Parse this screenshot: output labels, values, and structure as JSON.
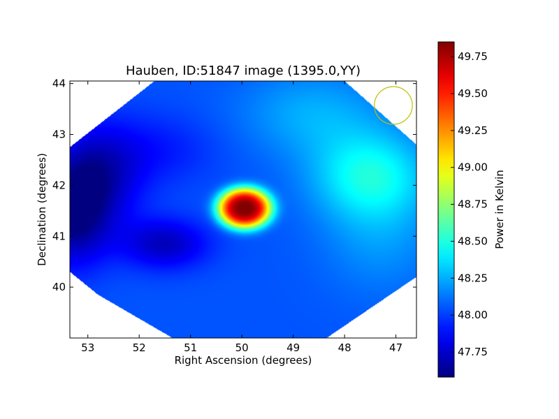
{
  "chart_data": {
    "type": "heatmap",
    "title": "Hauben, ID:51847 image (1395.0,YY)",
    "xlabel": "Right Ascension (degrees)",
    "ylabel": "Declination (degrees)",
    "xlim": [
      53.35,
      46.6
    ],
    "ylim": [
      39.0,
      44.05
    ],
    "x_ticks": [
      {
        "value": 53,
        "label": "53"
      },
      {
        "value": 52,
        "label": "52"
      },
      {
        "value": 51,
        "label": "51"
      },
      {
        "value": 50,
        "label": "50"
      },
      {
        "value": 49,
        "label": "49"
      },
      {
        "value": 48,
        "label": "48"
      },
      {
        "value": 47,
        "label": "47"
      }
    ],
    "y_ticks": [
      {
        "value": 40,
        "label": "40"
      },
      {
        "value": 41,
        "label": "41"
      },
      {
        "value": 42,
        "label": "42"
      },
      {
        "value": 43,
        "label": "43"
      },
      {
        "value": 44,
        "label": "44"
      }
    ],
    "colorbar": {
      "label": "Power in Kelvin",
      "range": [
        47.58,
        49.85
      ],
      "colormap": "jet",
      "ticks": [
        {
          "value": 47.75,
          "label": "47.75"
        },
        {
          "value": 48.0,
          "label": "48.00"
        },
        {
          "value": 48.25,
          "label": "48.25"
        },
        {
          "value": 48.5,
          "label": "48.50"
        },
        {
          "value": 48.75,
          "label": "48.75"
        },
        {
          "value": 49.0,
          "label": "49.00"
        },
        {
          "value": 49.25,
          "label": "49.25"
        },
        {
          "value": 49.5,
          "label": "49.50"
        },
        {
          "value": 49.75,
          "label": "49.75"
        }
      ]
    },
    "baseline_kelvin": 48.05,
    "field_polygon": [
      [
        51.7,
        44.05
      ],
      [
        48.0,
        44.05
      ],
      [
        46.6,
        42.8
      ],
      [
        46.6,
        40.2
      ],
      [
        48.35,
        39.0
      ],
      [
        51.35,
        39.0
      ],
      [
        52.8,
        39.85
      ],
      [
        53.35,
        40.3
      ],
      [
        53.35,
        42.75
      ]
    ],
    "features": [
      {
        "kind": "peak",
        "ra": 49.95,
        "dec": 41.55,
        "peak_kelvin": 49.85,
        "sigma_ra": 0.42,
        "sigma_dec": 0.32
      },
      {
        "kind": "warm",
        "ra": 47.5,
        "dec": 42.2,
        "peak_kelvin": 48.45,
        "sigma_ra": 0.8,
        "sigma_dec": 0.6
      },
      {
        "kind": "warm",
        "ra": 48.6,
        "dec": 43.4,
        "peak_kelvin": 48.25,
        "sigma_ra": 1.0,
        "sigma_dec": 0.6
      },
      {
        "kind": "warm",
        "ra": 47.3,
        "dec": 41.0,
        "peak_kelvin": 48.2,
        "sigma_ra": 0.8,
        "sigma_dec": 0.8
      },
      {
        "kind": "cold",
        "ra": 53.3,
        "dec": 41.4,
        "peak_kelvin": 47.62,
        "sigma_ra": 0.5,
        "sigma_dec": 0.7
      },
      {
        "kind": "cold",
        "ra": 51.5,
        "dec": 40.85,
        "peak_kelvin": 47.72,
        "sigma_ra": 0.6,
        "sigma_dec": 0.35
      },
      {
        "kind": "cold",
        "ra": 52.8,
        "dec": 42.2,
        "peak_kelvin": 47.72,
        "sigma_ra": 0.6,
        "sigma_dec": 0.7
      },
      {
        "kind": "cold",
        "ra": 51.6,
        "dec": 42.7,
        "peak_kelvin": 47.92,
        "sigma_ra": 0.8,
        "sigma_dec": 0.5
      }
    ],
    "beam_marker": {
      "ra": 47.05,
      "dec": 43.57,
      "radius_deg": 0.37,
      "color": "#bfbf00"
    },
    "grid": false,
    "legend": "none"
  }
}
